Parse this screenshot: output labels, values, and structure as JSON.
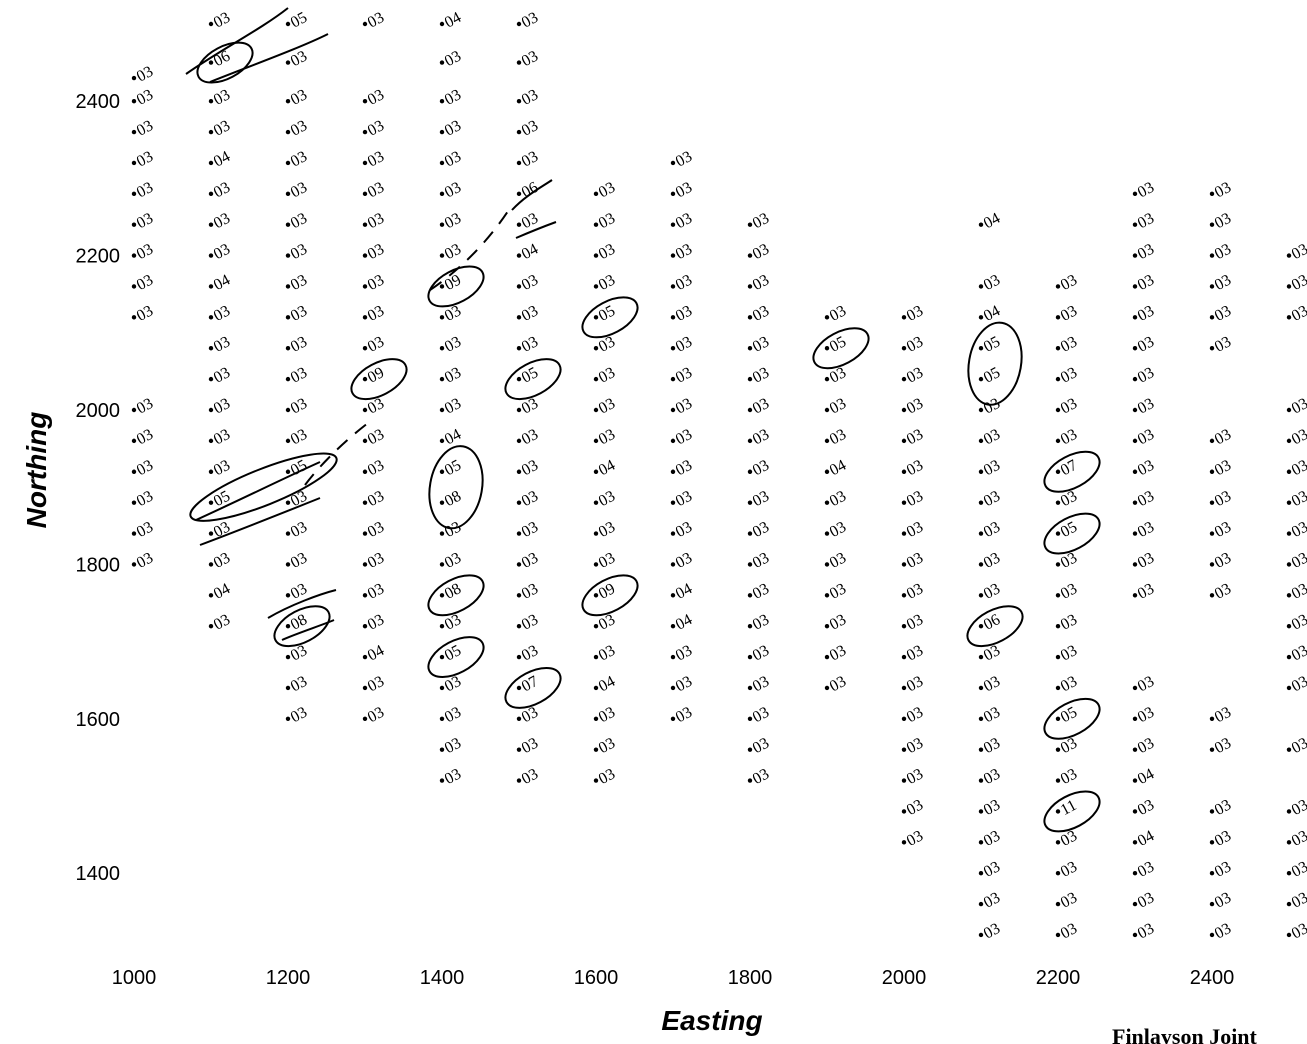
{
  "chart_data": {
    "type": "scatter",
    "title": "",
    "xlabel": "Easting",
    "ylabel": "Northing",
    "xlim": [
      1000,
      2600
    ],
    "ylim": [
      1300,
      2500
    ],
    "xticks": [
      "1000",
      "1200",
      "1400",
      "1600",
      "1800",
      "2000",
      "2200",
      "2400"
    ],
    "yticks": [
      "1400",
      "1600",
      "1800",
      "2000",
      "2200",
      "2400"
    ],
    "grid": false,
    "legend": "none",
    "series": [
      {
        "point_label_default": "03",
        "columns": [
          {
            "x": 1000,
            "y": [
              2430,
              2400,
              2360,
              2320,
              2280,
              2240,
              2200,
              2160,
              2120,
              2000,
              1960,
              1920,
              1880,
              1840,
              1800
            ],
            "labels": {
              "2000": "03"
            }
          },
          {
            "x": 1100,
            "y": [
              2500,
              2450,
              2400,
              2360,
              2320,
              2280,
              2240,
              2200,
              2160,
              2120,
              2080,
              2040,
              2000,
              1960,
              1920,
              1880,
              1840,
              1800,
              1760,
              1720
            ],
            "labels": {
              "2450": "06",
              "2320": "04",
              "2160": "04",
              "1880": "05",
              "1760": "04"
            }
          },
          {
            "x": 1200,
            "y": [
              2500,
              2450,
              2400,
              2360,
              2320,
              2280,
              2240,
              2200,
              2160,
              2120,
              2080,
              2040,
              2000,
              1960,
              1920,
              1880,
              1840,
              1800,
              1760,
              1720,
              1680,
              1640,
              1600
            ],
            "labels": {
              "2500": "05",
              "1920": "05",
              "1720": "08"
            }
          },
          {
            "x": 1300,
            "y": [
              2500,
              2400,
              2360,
              2320,
              2280,
              2240,
              2200,
              2160,
              2120,
              2080,
              2040,
              2000,
              1960,
              1920,
              1880,
              1840,
              1800,
              1760,
              1720,
              1680,
              1640,
              1600
            ],
            "labels": {
              "2040": "09",
              "1680": "04"
            }
          },
          {
            "x": 1400,
            "y": [
              2500,
              2450,
              2400,
              2360,
              2320,
              2280,
              2240,
              2200,
              2160,
              2120,
              2080,
              2040,
              2000,
              1960,
              1920,
              1880,
              1840,
              1800,
              1760,
              1720,
              1680,
              1640,
              1600,
              1560,
              1520
            ],
            "labels": {
              "2500": "04",
              "2160": "09",
              "1960": "04",
              "1920": "05",
              "1880": "08",
              "1760": "08",
              "1680": "05"
            }
          },
          {
            "x": 1500,
            "y": [
              2500,
              2450,
              2400,
              2360,
              2320,
              2280,
              2240,
              2200,
              2160,
              2120,
              2080,
              2040,
              2000,
              1960,
              1920,
              1880,
              1840,
              1800,
              1760,
              1720,
              1680,
              1640,
              1600,
              1560,
              1520
            ],
            "labels": {
              "2280": "06",
              "2200": "04",
              "2040": "05",
              "1640": "07"
            }
          },
          {
            "x": 1600,
            "y": [
              2280,
              2240,
              2200,
              2160,
              2120,
              2080,
              2040,
              2000,
              1960,
              1920,
              1880,
              1840,
              1800,
              1760,
              1720,
              1680,
              1640,
              1600,
              1560,
              1520
            ],
            "labels": {
              "2120": "05",
              "1920": "04",
              "1760": "09",
              "1640": "04"
            }
          },
          {
            "x": 1700,
            "y": [
              2320,
              2280,
              2240,
              2200,
              2160,
              2120,
              2080,
              2040,
              2000,
              1960,
              1920,
              1880,
              1840,
              1800,
              1760,
              1720,
              1680,
              1640,
              1600
            ],
            "labels": {
              "1760": "04",
              "1720": "04"
            }
          },
          {
            "x": 1800,
            "y": [
              2240,
              2200,
              2160,
              2120,
              2080,
              2040,
              2000,
              1960,
              1920,
              1880,
              1840,
              1800,
              1760,
              1720,
              1680,
              1640,
              1600,
              1560,
              1520
            ],
            "labels": {}
          },
          {
            "x": 1900,
            "y": [
              2120,
              2080,
              2040,
              2000,
              1960,
              1920,
              1880,
              1840,
              1800,
              1760,
              1720,
              1680,
              1640
            ],
            "labels": {
              "2080": "05",
              "1920": "04"
            }
          },
          {
            "x": 2000,
            "y": [
              2120,
              2080,
              2040,
              2000,
              1960,
              1920,
              1880,
              1840,
              1800,
              1760,
              1720,
              1680,
              1640,
              1600,
              1560,
              1520,
              1480,
              1440
            ],
            "labels": {}
          },
          {
            "x": 2100,
            "y": [
              2240,
              2160,
              2120,
              2080,
              2040,
              2000,
              1960,
              1920,
              1880,
              1840,
              1800,
              1760,
              1720,
              1680,
              1640,
              1600,
              1560,
              1520,
              1480,
              1440,
              1400,
              1360,
              1320
            ],
            "labels": {
              "2240": "04",
              "2120": "04",
              "2080": "05",
              "2040": "05",
              "1720": "06"
            }
          },
          {
            "x": 2200,
            "y": [
              2160,
              2120,
              2080,
              2040,
              2000,
              1960,
              1920,
              1880,
              1840,
              1800,
              1760,
              1720,
              1680,
              1640,
              1600,
              1560,
              1520,
              1480,
              1440,
              1400,
              1360,
              1320
            ],
            "labels": {
              "1920": "07",
              "1840": "05",
              "1600": "05",
              "1480": "11"
            }
          },
          {
            "x": 2300,
            "y": [
              2280,
              2240,
              2200,
              2160,
              2120,
              2080,
              2040,
              2000,
              1960,
              1920,
              1880,
              1840,
              1800,
              1760,
              1640,
              1600,
              1560,
              1520,
              1480,
              1440,
              1400,
              1360,
              1320
            ],
            "labels": {
              "1520": "04",
              "1440": "04"
            }
          },
          {
            "x": 2400,
            "y": [
              2280,
              2240,
              2200,
              2160,
              2120,
              2080,
              1960,
              1920,
              1880,
              1840,
              1800,
              1760,
              1600,
              1560,
              1480,
              1440,
              1400,
              1360,
              1320
            ],
            "labels": {}
          },
          {
            "x": 2500,
            "y": [
              2200,
              2160,
              2120,
              2000,
              1960,
              1920,
              1880,
              1840,
              1800,
              1760,
              1720,
              1680,
              1640,
              1560,
              1480,
              1440,
              1400,
              1360,
              1320
            ],
            "labels": {}
          }
        ]
      }
    ],
    "annotations": [
      {
        "kind": "circled-point",
        "x": 1100,
        "y": 2450
      },
      {
        "kind": "circled-point",
        "x": 1300,
        "y": 2040
      },
      {
        "kind": "circled-point",
        "x": 1400,
        "y": 2160
      },
      {
        "kind": "circled-group",
        "x": 1400,
        "y": [
          1920,
          1880
        ]
      },
      {
        "kind": "circled-point",
        "x": 1400,
        "y": 1760
      },
      {
        "kind": "circled-point",
        "x": 1400,
        "y": 1680
      },
      {
        "kind": "circled-point",
        "x": 1500,
        "y": 2040
      },
      {
        "kind": "circled-point",
        "x": 1500,
        "y": 1640
      },
      {
        "kind": "circled-point",
        "x": 1600,
        "y": 2120
      },
      {
        "kind": "circled-point",
        "x": 1600,
        "y": 1760
      },
      {
        "kind": "circled-point",
        "x": 1900,
        "y": 2080
      },
      {
        "kind": "circled-group",
        "x": 2100,
        "y": [
          2080,
          2040
        ]
      },
      {
        "kind": "circled-point",
        "x": 2100,
        "y": 1720
      },
      {
        "kind": "circled-point",
        "x": 2200,
        "y": 1920
      },
      {
        "kind": "circled-point",
        "x": 2200,
        "y": 1840
      },
      {
        "kind": "circled-point",
        "x": 2200,
        "y": 1600
      },
      {
        "kind": "circled-point",
        "x": 2200,
        "y": 1480
      },
      {
        "kind": "circled-point",
        "x": 1200,
        "y": 1720
      },
      {
        "kind": "circled-group",
        "x": [
          1100,
          1200
        ],
        "y": [
          1880,
          1920
        ]
      }
    ]
  },
  "footer_note": "Finlayson Joint"
}
